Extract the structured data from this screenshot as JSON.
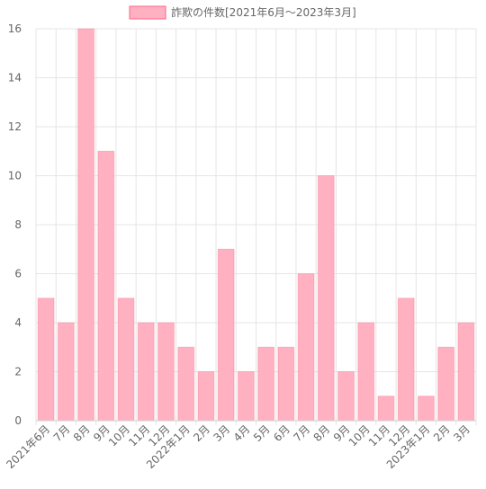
{
  "chart_data": {
    "type": "bar",
    "legend": {
      "label": "詐欺の件数[2021年6月～2023年3月]",
      "placement": "top-center"
    },
    "categories": [
      "2021年6月",
      "7月",
      "8月",
      "9月",
      "10月",
      "11月",
      "12月",
      "2022年1月",
      "2月",
      "3月",
      "4月",
      "5月",
      "6月",
      "7月",
      "8月",
      "9月",
      "10月",
      "11月",
      "12月",
      "2023年1月",
      "2月",
      "3月"
    ],
    "series": [
      {
        "name": "詐欺の件数[2021年6月～2023年3月]",
        "values": [
          5,
          4,
          16,
          11,
          5,
          4,
          4,
          3,
          2,
          7,
          2,
          3,
          3,
          6,
          10,
          2,
          4,
          1,
          5,
          1,
          3,
          4
        ]
      }
    ],
    "ylim": [
      0,
      16
    ],
    "yticks": [
      0,
      2,
      4,
      6,
      8,
      10,
      12,
      14,
      16
    ],
    "grid": true,
    "colors": {
      "bar_fill": "#ffb1c1",
      "bar_stroke": "#ff6384",
      "grid": "#e5e5e5",
      "text": "#666666"
    }
  }
}
